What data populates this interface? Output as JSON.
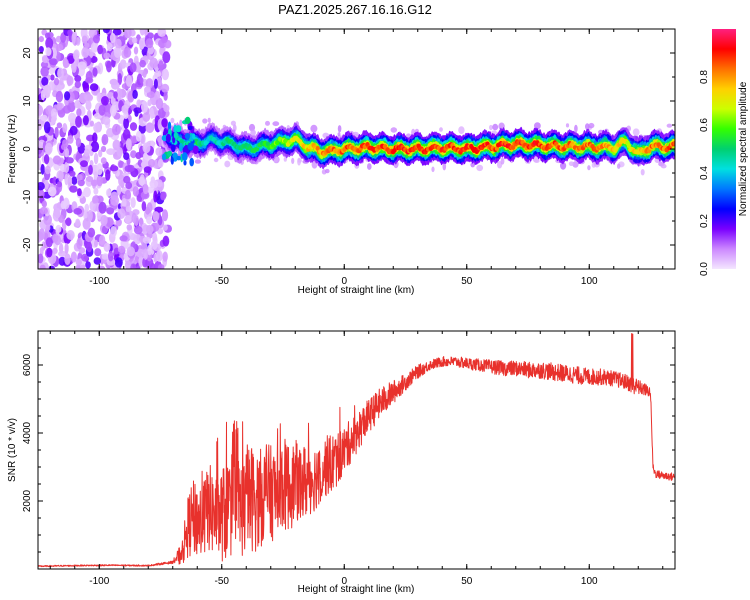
{
  "title": "PAZ1.2025.267.16.16.G12",
  "colors": {
    "snr_line": "#e8312c",
    "axis": "#000000"
  },
  "chart_data": [
    {
      "type": "heatmap",
      "xlabel": "Height of straight line (km)",
      "ylabel": "Frequency (Hz)",
      "xlim": [
        -125,
        135
      ],
      "ylim": [
        -25,
        25
      ],
      "xticks": [
        -100,
        -50,
        0,
        50,
        100
      ],
      "yticks": [
        -20,
        -10,
        0,
        10,
        20
      ],
      "colorbar": {
        "label": "Normalized spectral amplitude",
        "range": [
          0,
          1
        ],
        "ticks": [
          "0.0",
          "0.2",
          "0.4",
          "0.6",
          "0.8"
        ],
        "stops": [
          "#f4e6ff",
          "#cc88ff",
          "#7a00ff",
          "#0000ff",
          "#0077ff",
          "#00e0e0",
          "#00d070",
          "#33ff00",
          "#ccff00",
          "#ffd000",
          "#ff7000",
          "#ff0000",
          "#ff2080"
        ]
      },
      "noise_region_x": [
        -125,
        -72
      ],
      "ridge": {
        "x": [
          -73,
          -70,
          -65,
          -60,
          -55,
          -50,
          -45,
          -40,
          -35,
          -30,
          -25,
          -20,
          -15,
          -10,
          -5,
          0,
          10,
          20,
          30,
          40,
          50,
          60,
          70,
          80,
          90,
          100,
          110,
          115,
          120,
          125,
          130,
          135
        ],
        "y": [
          3,
          2,
          1.5,
          1,
          2,
          1.5,
          1,
          0,
          0.5,
          1,
          1.5,
          2,
          0.5,
          -0.5,
          -0.5,
          0,
          0.3,
          0,
          0,
          0.3,
          0,
          0.5,
          1,
          0.8,
          0.5,
          0.5,
          0.3,
          1.5,
          -1,
          0.5,
          0.5,
          0.5
        ],
        "amplitude": [
          0.3,
          0.45,
          0.5,
          0.55,
          0.45,
          0.5,
          0.55,
          0.55,
          0.55,
          0.6,
          0.7,
          0.75,
          0.8,
          0.85,
          0.9,
          0.9,
          0.95,
          0.95,
          0.95,
          0.95,
          0.95,
          0.95,
          0.95,
          0.95,
          0.9,
          0.9,
          0.85,
          0.75,
          0.8,
          0.9,
          0.9,
          0.9
        ]
      }
    },
    {
      "type": "line",
      "xlabel": "Height of straight line (km)",
      "ylabel": "SNR (10 * v/v)",
      "xlim": [
        -125,
        135
      ],
      "ylim": [
        0,
        7000
      ],
      "xticks": [
        -100,
        -50,
        0,
        50,
        100
      ],
      "yticks": [
        2000,
        4000,
        6000
      ],
      "series": [
        {
          "x": [
            -125,
            -110,
            -95,
            -80,
            -70,
            -66,
            -64,
            -62,
            -58,
            -55,
            -52,
            -48,
            -45,
            -42,
            -38,
            -35,
            -32,
            -28,
            -25,
            -22,
            -20,
            -18,
            -15,
            -12,
            -8,
            -5,
            -2,
            0,
            3,
            6,
            10,
            15,
            20,
            25,
            30,
            35,
            40,
            45,
            50,
            55,
            60,
            65,
            70,
            75,
            80,
            85,
            90,
            95,
            100,
            105,
            110,
            115,
            118,
            122,
            125,
            126,
            127,
            130,
            135
          ],
          "y": [
            80,
            100,
            110,
            100,
            200,
            500,
            1200,
            1500,
            1400,
            1800,
            1500,
            1700,
            2000,
            1800,
            2100,
            2000,
            2300,
            2200,
            2500,
            2400,
            2600,
            2500,
            2600,
            2700,
            3000,
            3100,
            3300,
            3500,
            3800,
            4100,
            4500,
            4900,
            5200,
            5500,
            5800,
            6000,
            6100,
            6100,
            6050,
            6000,
            5950,
            5900,
            5900,
            5850,
            5850,
            5800,
            5750,
            5700,
            5650,
            5650,
            5600,
            5500,
            5400,
            5300,
            5200,
            3000,
            2800,
            2750,
            2700
          ],
          "noise_amplitude": [
            20,
            20,
            20,
            20,
            40,
            400,
            900,
            1100,
            1200,
            1300,
            1300,
            1500,
            1600,
            1500,
            1600,
            1500,
            1400,
            1400,
            1400,
            1300,
            1200,
            1200,
            1100,
            1000,
            900,
            900,
            800,
            700,
            650,
            600,
            500,
            450,
            350,
            250,
            200,
            150,
            150,
            150,
            170,
            180,
            200,
            220,
            230,
            240,
            250,
            260,
            260,
            260,
            250,
            240,
            230,
            230,
            250,
            200,
            150,
            120,
            120,
            120,
            120
          ]
        }
      ]
    }
  ]
}
